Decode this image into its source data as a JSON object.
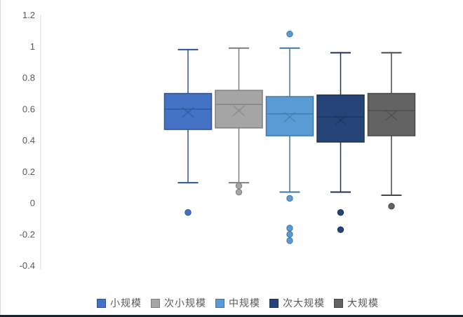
{
  "chart_data": {
    "type": "boxplot",
    "title": "",
    "xlabel": "",
    "ylabel": "",
    "ylim": [
      -0.4,
      1.2
    ],
    "grid": false,
    "legend_position": "bottom",
    "yticks": [
      1.2,
      1,
      0.8,
      0.6,
      0.4,
      0.2,
      0,
      -0.2,
      -0.4
    ],
    "ytick_labels": [
      "1.2",
      "1",
      "0.8",
      "0.6",
      "0.4",
      "0.2",
      "0",
      "-0.2",
      "-0.4"
    ],
    "series": [
      {
        "name": "小规模",
        "fill": "#4472C4",
        "stroke": "#2E5395",
        "whisker_low": 0.13,
        "q1": 0.47,
        "median": 0.6,
        "mean": 0.58,
        "q3": 0.7,
        "whisker_high": 0.98,
        "outliers": [
          -0.06
        ]
      },
      {
        "name": "次小规模",
        "fill": "#A5A5A5",
        "stroke": "#7F7F7F",
        "whisker_low": 0.13,
        "q1": 0.48,
        "median": 0.63,
        "mean": 0.59,
        "q3": 0.72,
        "whisker_high": 0.99,
        "outliers": [
          0.11,
          0.07
        ]
      },
      {
        "name": "中规模",
        "fill": "#5B9BD5",
        "stroke": "#3E76A8",
        "whisker_low": 0.07,
        "q1": 0.43,
        "median": 0.57,
        "mean": 0.55,
        "q3": 0.68,
        "whisker_high": 0.99,
        "outliers": [
          1.08,
          0.03,
          -0.16,
          -0.2,
          -0.24
        ]
      },
      {
        "name": "次大规模",
        "fill": "#264478",
        "stroke": "#1C3359",
        "whisker_low": 0.07,
        "q1": 0.39,
        "median": 0.55,
        "mean": 0.53,
        "q3": 0.69,
        "whisker_high": 0.96,
        "outliers": [
          -0.06,
          -0.17
        ]
      },
      {
        "name": "大规模",
        "fill": "#636363",
        "stroke": "#494949",
        "whisker_low": 0.05,
        "q1": 0.43,
        "median": 0.59,
        "mean": 0.56,
        "q3": 0.7,
        "whisker_high": 0.96,
        "outliers": [
          -0.02
        ]
      }
    ],
    "colors": {
      "axis_line": "#D9D9D9",
      "tick_text": "#595959",
      "legend_text": "#595959",
      "left_border": "#D9D9D9",
      "bottom_border": "#1A2133"
    }
  }
}
